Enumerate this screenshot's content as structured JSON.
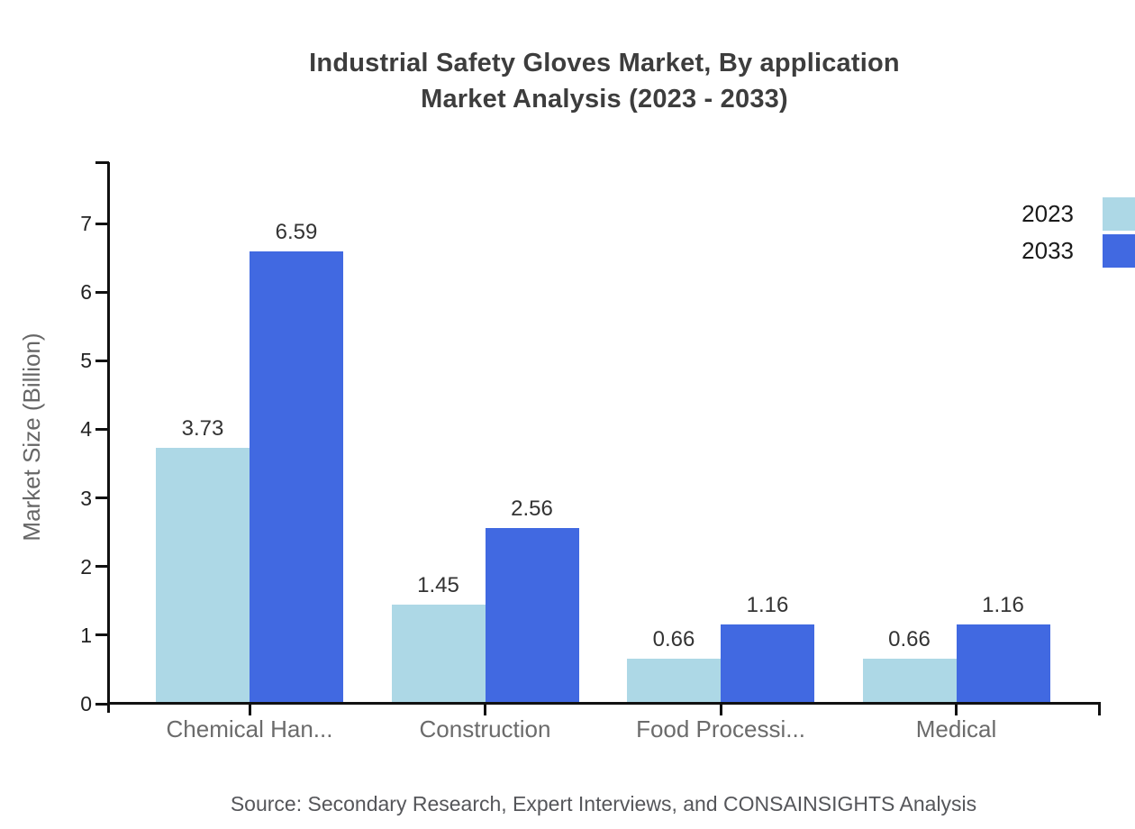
{
  "chart_data": {
    "type": "bar",
    "title_line1": "Industrial Safety Gloves Market, By application",
    "title_line2": "Market Analysis (2023 - 2033)",
    "ylabel": "Market Size (Billion)",
    "xlabel": "",
    "categories": [
      "Chemical Han...",
      "Construction",
      "Food Processi...",
      "Medical"
    ],
    "series": [
      {
        "name": "2023",
        "color": "#ADD8E6",
        "values": [
          3.73,
          1.45,
          0.66,
          0.66
        ]
      },
      {
        "name": "2033",
        "color": "#4169E1",
        "values": [
          6.59,
          2.56,
          1.16,
          1.16
        ]
      }
    ],
    "yticks": [
      0,
      1,
      2,
      3,
      4,
      5,
      6,
      7
    ],
    "ylim": [
      0,
      7.9
    ],
    "grid": false,
    "legend_position": "top-right",
    "value_label_format": "2-decimals"
  },
  "footer": {
    "source": "Source: Secondary Research, Expert Interviews, and CONSAINSIGHTS Analysis"
  },
  "colors": {
    "axis": "#111111",
    "title_text": "#3d3d3d",
    "axis_label_text": "#666666",
    "tick_label_text": "#222222",
    "value_label_text": "#333333",
    "source_text": "#55565a",
    "background": "#ffffff"
  }
}
